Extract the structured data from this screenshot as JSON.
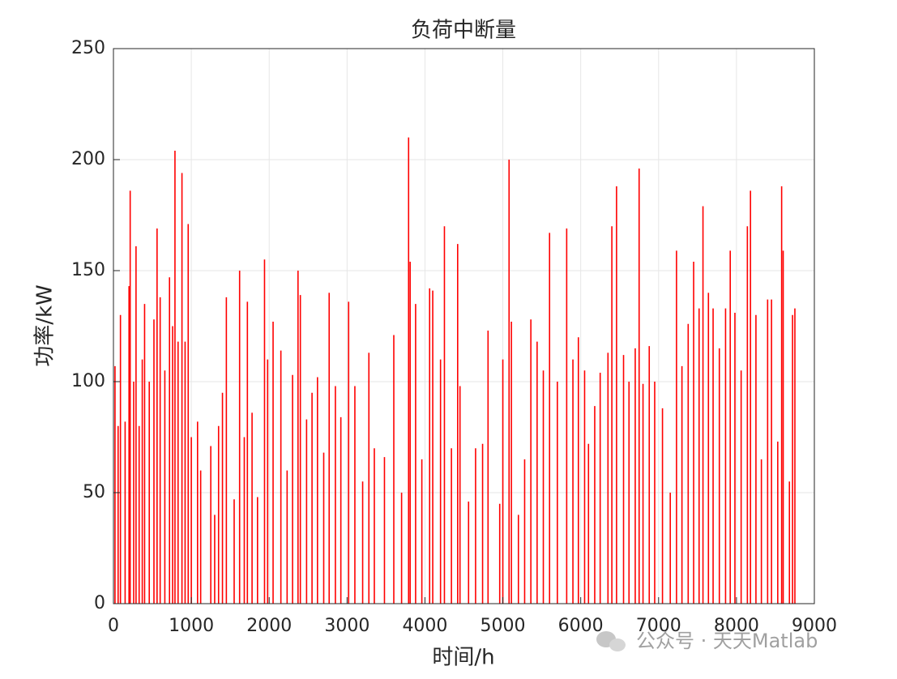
{
  "chart_data": {
    "type": "stem",
    "title": "负荷中断量",
    "xlabel": "时间/h",
    "ylabel": "功率/kW",
    "color": "#ff0000",
    "grid": true,
    "xlim": [
      0,
      9000
    ],
    "xticks": [
      0,
      1000,
      2000,
      3000,
      4000,
      5000,
      6000,
      7000,
      8000,
      9000
    ],
    "ylim": [
      0,
      250
    ],
    "yticks": [
      0,
      50,
      100,
      150,
      200,
      250
    ],
    "x": [
      20,
      60,
      90,
      150,
      200,
      215,
      260,
      290,
      330,
      370,
      400,
      460,
      520,
      560,
      600,
      660,
      720,
      760,
      790,
      830,
      880,
      920,
      960,
      1000,
      1080,
      1120,
      1250,
      1300,
      1350,
      1400,
      1450,
      1550,
      1620,
      1680,
      1720,
      1780,
      1850,
      1940,
      1980,
      2050,
      2150,
      2230,
      2300,
      2370,
      2400,
      2480,
      2550,
      2620,
      2700,
      2770,
      2850,
      2920,
      3020,
      3100,
      3200,
      3280,
      3350,
      3480,
      3600,
      3700,
      3790,
      3810,
      3880,
      3960,
      4060,
      4100,
      4200,
      4250,
      4340,
      4420,
      4450,
      4560,
      4650,
      4740,
      4810,
      4960,
      5000,
      5080,
      5110,
      5200,
      5280,
      5360,
      5440,
      5520,
      5600,
      5700,
      5820,
      5900,
      5970,
      6050,
      6100,
      6180,
      6250,
      6350,
      6400,
      6460,
      6550,
      6620,
      6700,
      6750,
      6800,
      6880,
      6950,
      7050,
      7150,
      7230,
      7300,
      7380,
      7450,
      7520,
      7570,
      7640,
      7700,
      7780,
      7860,
      7920,
      7980,
      8060,
      8140,
      8180,
      8250,
      8320,
      8400,
      8450,
      8530,
      8580,
      8600,
      8680,
      8720,
      8750
    ],
    "values": [
      107,
      80,
      130,
      82,
      143,
      186,
      100,
      161,
      80,
      110,
      135,
      100,
      128,
      169,
      138,
      105,
      147,
      125,
      204,
      118,
      194,
      118,
      171,
      75,
      82,
      60,
      71,
      40,
      80,
      95,
      138,
      47,
      150,
      75,
      136,
      86,
      48,
      155,
      110,
      127,
      114,
      60,
      103,
      150,
      139,
      83,
      95,
      102,
      68,
      140,
      98,
      84,
      136,
      98,
      55,
      113,
      70,
      66,
      121,
      50,
      210,
      154,
      135,
      65,
      142,
      141,
      110,
      170,
      70,
      162,
      98,
      46,
      70,
      72,
      123,
      45,
      110,
      200,
      127,
      40,
      65,
      128,
      118,
      105,
      167,
      100,
      169,
      110,
      120,
      105,
      72,
      89,
      104,
      113,
      170,
      188,
      112,
      100,
      115,
      196,
      99,
      116,
      100,
      88,
      50,
      159,
      107,
      126,
      154,
      133,
      179,
      140,
      133,
      115,
      133,
      159,
      131,
      105,
      170,
      186,
      130,
      65,
      137,
      137,
      73,
      188,
      159,
      55,
      130,
      133
    ]
  },
  "watermark": "公众号 · 天天Matlab"
}
